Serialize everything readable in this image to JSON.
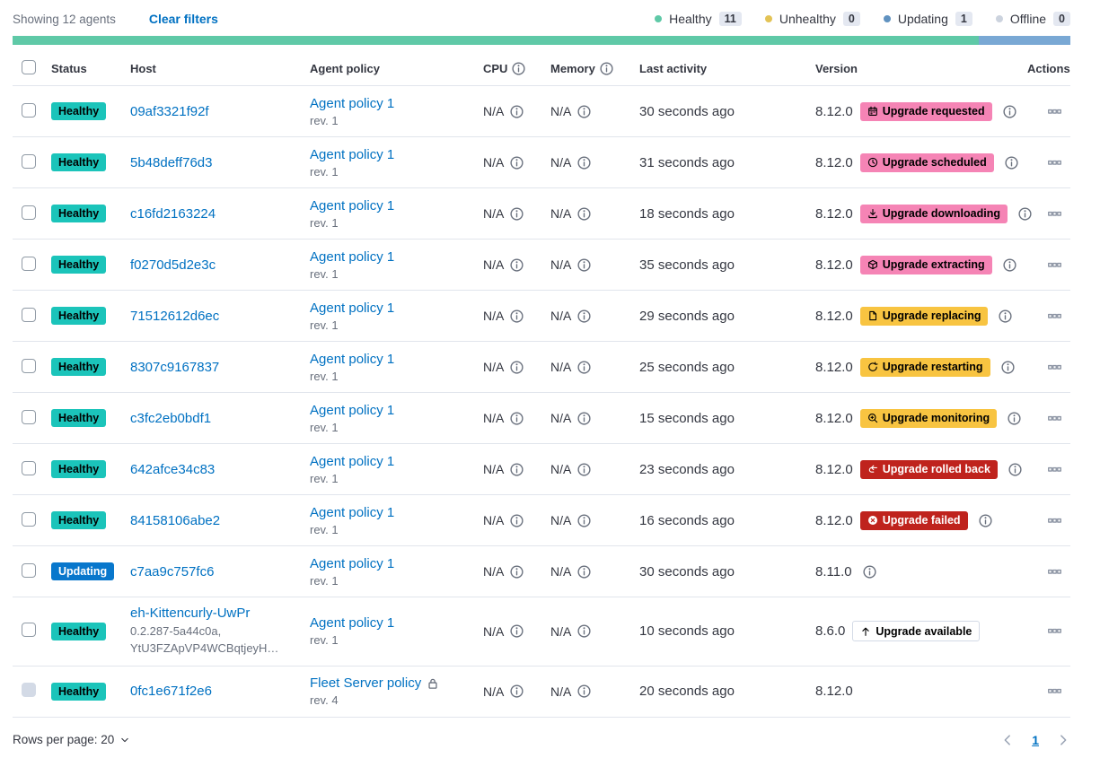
{
  "colors": {
    "link": "#0071C2",
    "healthy": "#1BC4BA",
    "updating": "#0877CC",
    "accent": "#F584B5",
    "warning": "#F8C441",
    "danger": "#BF231D"
  },
  "toolbar": {
    "showing": "Showing 12 agents",
    "clear_filters": "Clear filters",
    "legend": [
      {
        "label": "Healthy",
        "count": "11",
        "color": "#5FC9A7"
      },
      {
        "label": "Unhealthy",
        "count": "0",
        "color": "#E3C355"
      },
      {
        "label": "Updating",
        "count": "1",
        "color": "#6092C0"
      },
      {
        "label": "Offline",
        "count": "0",
        "color": "#CCD3DE"
      }
    ]
  },
  "health_bar": {
    "segments": [
      {
        "status": "healthy",
        "color": "#5FC9A7",
        "pct": 91.3
      },
      {
        "status": "updating",
        "color": "#79A8D4",
        "pct": 8.7
      }
    ]
  },
  "table": {
    "headers": {
      "status": "Status",
      "host": "Host",
      "policy": "Agent policy",
      "cpu": "CPU",
      "memory": "Memory",
      "last_activity": "Last activity",
      "version": "Version",
      "actions": "Actions"
    },
    "rows": [
      {
        "checkbox_disabled": false,
        "status": {
          "label": "Healthy",
          "variant": "healthy"
        },
        "host": {
          "name": "09af3321f92f",
          "meta": ""
        },
        "policy": {
          "name": "Agent policy 1",
          "rev": "rev. 1",
          "locked": false
        },
        "cpu": "N/A",
        "memory": "N/A",
        "last_activity": "30 seconds ago",
        "version": "8.12.0",
        "upgrade": {
          "label": "Upgrade requested",
          "variant": "accent",
          "icon": "calendar-icon"
        },
        "version_info": true
      },
      {
        "checkbox_disabled": false,
        "status": {
          "label": "Healthy",
          "variant": "healthy"
        },
        "host": {
          "name": "5b48deff76d3",
          "meta": ""
        },
        "policy": {
          "name": "Agent policy 1",
          "rev": "rev. 1",
          "locked": false
        },
        "cpu": "N/A",
        "memory": "N/A",
        "last_activity": "31 seconds ago",
        "version": "8.12.0",
        "upgrade": {
          "label": "Upgrade scheduled",
          "variant": "accent",
          "icon": "clock-icon"
        },
        "version_info": true
      },
      {
        "checkbox_disabled": false,
        "status": {
          "label": "Healthy",
          "variant": "healthy"
        },
        "host": {
          "name": "c16fd2163224",
          "meta": ""
        },
        "policy": {
          "name": "Agent policy 1",
          "rev": "rev. 1",
          "locked": false
        },
        "cpu": "N/A",
        "memory": "N/A",
        "last_activity": "18 seconds ago",
        "version": "8.12.0",
        "upgrade": {
          "label": "Upgrade downloading",
          "variant": "accent",
          "icon": "download-icon"
        },
        "version_info": true
      },
      {
        "checkbox_disabled": false,
        "status": {
          "label": "Healthy",
          "variant": "healthy"
        },
        "host": {
          "name": "f0270d5d2e3c",
          "meta": ""
        },
        "policy": {
          "name": "Agent policy 1",
          "rev": "rev. 1",
          "locked": false
        },
        "cpu": "N/A",
        "memory": "N/A",
        "last_activity": "35 seconds ago",
        "version": "8.12.0",
        "upgrade": {
          "label": "Upgrade extracting",
          "variant": "accent",
          "icon": "package-icon"
        },
        "version_info": true
      },
      {
        "checkbox_disabled": false,
        "status": {
          "label": "Healthy",
          "variant": "healthy"
        },
        "host": {
          "name": "71512612d6ec",
          "meta": ""
        },
        "policy": {
          "name": "Agent policy 1",
          "rev": "rev. 1",
          "locked": false
        },
        "cpu": "N/A",
        "memory": "N/A",
        "last_activity": "29 seconds ago",
        "version": "8.12.0",
        "upgrade": {
          "label": "Upgrade replacing",
          "variant": "warning",
          "icon": "document-icon"
        },
        "version_info": true
      },
      {
        "checkbox_disabled": false,
        "status": {
          "label": "Healthy",
          "variant": "healthy"
        },
        "host": {
          "name": "8307c9167837",
          "meta": ""
        },
        "policy": {
          "name": "Agent policy 1",
          "rev": "rev. 1",
          "locked": false
        },
        "cpu": "N/A",
        "memory": "N/A",
        "last_activity": "25 seconds ago",
        "version": "8.12.0",
        "upgrade": {
          "label": "Upgrade restarting",
          "variant": "warning",
          "icon": "refresh-icon"
        },
        "version_info": true
      },
      {
        "checkbox_disabled": false,
        "status": {
          "label": "Healthy",
          "variant": "healthy"
        },
        "host": {
          "name": "c3fc2eb0bdf1",
          "meta": ""
        },
        "policy": {
          "name": "Agent policy 1",
          "rev": "rev. 1",
          "locked": false
        },
        "cpu": "N/A",
        "memory": "N/A",
        "last_activity": "15 seconds ago",
        "version": "8.12.0",
        "upgrade": {
          "label": "Upgrade monitoring",
          "variant": "warning",
          "icon": "inspect-icon"
        },
        "version_info": true
      },
      {
        "checkbox_disabled": false,
        "status": {
          "label": "Healthy",
          "variant": "healthy"
        },
        "host": {
          "name": "642afce34c83",
          "meta": ""
        },
        "policy": {
          "name": "Agent policy 1",
          "rev": "rev. 1",
          "locked": false
        },
        "cpu": "N/A",
        "memory": "N/A",
        "last_activity": "23 seconds ago",
        "version": "8.12.0",
        "upgrade": {
          "label": "Upgrade rolled back",
          "variant": "danger",
          "icon": "return-arrow-icon"
        },
        "version_info": true
      },
      {
        "checkbox_disabled": false,
        "status": {
          "label": "Healthy",
          "variant": "healthy"
        },
        "host": {
          "name": "84158106abe2",
          "meta": ""
        },
        "policy": {
          "name": "Agent policy 1",
          "rev": "rev. 1",
          "locked": false
        },
        "cpu": "N/A",
        "memory": "N/A",
        "last_activity": "16 seconds ago",
        "version": "8.12.0",
        "upgrade": {
          "label": "Upgrade failed",
          "variant": "danger",
          "icon": "cross-in-circle-icon"
        },
        "version_info": true
      },
      {
        "checkbox_disabled": false,
        "status": {
          "label": "Updating",
          "variant": "updating"
        },
        "host": {
          "name": "c7aa9c757fc6",
          "meta": ""
        },
        "policy": {
          "name": "Agent policy 1",
          "rev": "rev. 1",
          "locked": false
        },
        "cpu": "N/A",
        "memory": "N/A",
        "last_activity": "30 seconds ago",
        "version": "8.11.0",
        "upgrade": null,
        "version_info": true
      },
      {
        "checkbox_disabled": false,
        "status": {
          "label": "Healthy",
          "variant": "healthy"
        },
        "host": {
          "name": "eh-Kittencurly-UwPr",
          "meta": "0.2.287-5a44c0a, YtU3FZApVP4WCBqtjeyH…"
        },
        "policy": {
          "name": "Agent policy 1",
          "rev": "rev. 1",
          "locked": false
        },
        "cpu": "N/A",
        "memory": "N/A",
        "last_activity": "10 seconds ago",
        "version": "8.6.0",
        "upgrade": {
          "label": "Upgrade available",
          "variant": "hollow",
          "icon": "arrow-up-icon"
        },
        "version_info": false
      },
      {
        "checkbox_disabled": true,
        "status": {
          "label": "Healthy",
          "variant": "healthy"
        },
        "host": {
          "name": "0fc1e671f2e6",
          "meta": ""
        },
        "policy": {
          "name": "Fleet Server policy",
          "rev": "rev. 4",
          "locked": true
        },
        "cpu": "N/A",
        "memory": "N/A",
        "last_activity": "20 seconds ago",
        "version": "8.12.0",
        "upgrade": null,
        "version_info": false
      }
    ]
  },
  "footer": {
    "rows_per_page": "Rows per page: 20",
    "page": "1"
  }
}
